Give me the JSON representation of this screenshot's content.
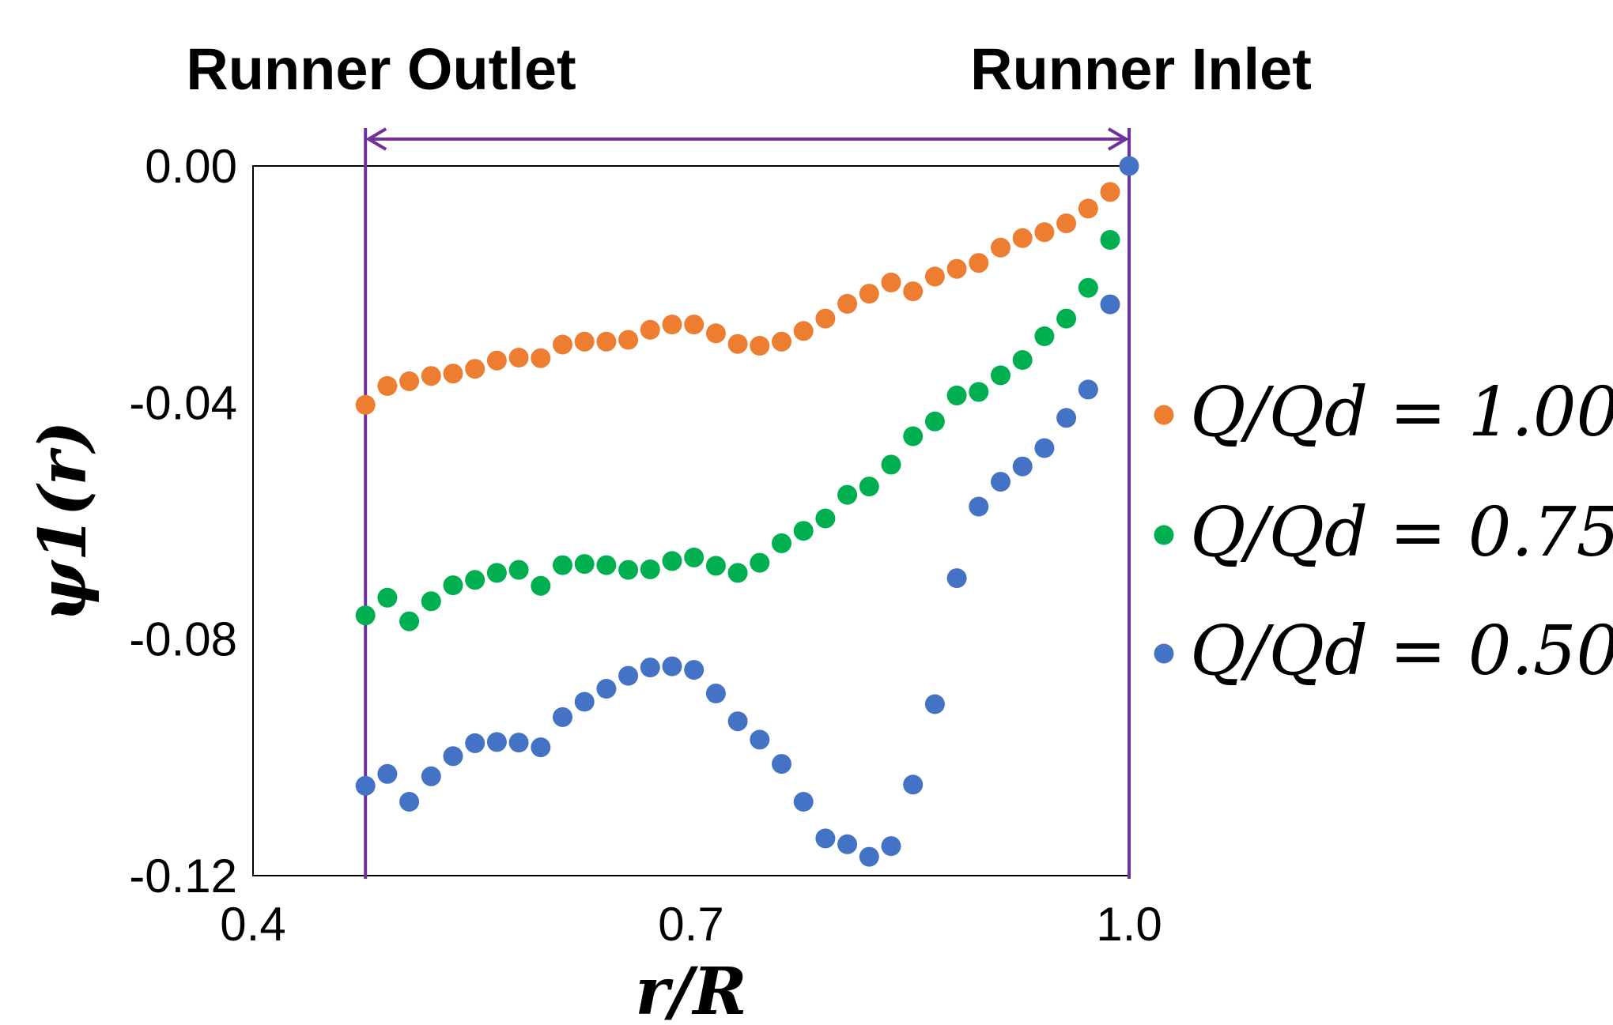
{
  "chart_data": {
    "type": "scatter",
    "xlabel": "r/R",
    "ylabel": "ψ1(r)",
    "xlim": [
      0.4,
      1.0
    ],
    "ylim": [
      -0.12,
      0.0
    ],
    "x_ticks": [
      "0.4",
      "0.7",
      "1.0"
    ],
    "y_ticks": [
      "0.00",
      "-0.04",
      "-0.08",
      "-0.12"
    ],
    "annotations": {
      "outlet_label": "Runner Outlet",
      "inlet_label": "Runner Inlet",
      "outlet_x": 0.477,
      "inlet_x": 1.0
    },
    "legend_position": "right",
    "series": [
      {
        "name": "Q/Qd = 1.00",
        "color": "#ed7d31",
        "x": [
          0.477,
          0.492,
          0.507,
          0.522,
          0.537,
          0.552,
          0.567,
          0.582,
          0.597,
          0.612,
          0.627,
          0.642,
          0.657,
          0.672,
          0.687,
          0.702,
          0.717,
          0.732,
          0.747,
          0.762,
          0.777,
          0.792,
          0.807,
          0.822,
          0.837,
          0.852,
          0.867,
          0.882,
          0.897,
          0.912,
          0.927,
          0.942,
          0.957,
          0.972,
          0.987
        ],
        "y": [
          -0.0404,
          -0.0372,
          -0.0364,
          -0.0355,
          -0.0351,
          -0.0343,
          -0.0329,
          -0.0324,
          -0.0325,
          -0.0302,
          -0.0297,
          -0.0297,
          -0.0294,
          -0.0277,
          -0.0268,
          -0.0268,
          -0.0283,
          -0.0301,
          -0.0304,
          -0.0297,
          -0.0279,
          -0.0258,
          -0.0233,
          -0.0216,
          -0.0197,
          -0.0212,
          -0.0187,
          -0.0174,
          -0.0164,
          -0.0138,
          -0.0122,
          -0.0112,
          -0.0097,
          -0.0072,
          -0.0044
        ]
      },
      {
        "name": "Q/Qd = 0.75",
        "color": "#00b050",
        "x": [
          0.477,
          0.492,
          0.507,
          0.522,
          0.537,
          0.552,
          0.567,
          0.582,
          0.597,
          0.612,
          0.627,
          0.642,
          0.657,
          0.672,
          0.687,
          0.702,
          0.717,
          0.732,
          0.747,
          0.762,
          0.777,
          0.792,
          0.807,
          0.822,
          0.837,
          0.852,
          0.867,
          0.882,
          0.897,
          0.912,
          0.927,
          0.942,
          0.957,
          0.972,
          0.987
        ],
        "y": [
          -0.076,
          -0.073,
          -0.077,
          -0.0736,
          -0.0709,
          -0.07,
          -0.0688,
          -0.0683,
          -0.071,
          -0.0675,
          -0.0673,
          -0.0675,
          -0.0683,
          -0.0682,
          -0.0668,
          -0.0662,
          -0.0676,
          -0.0688,
          -0.0671,
          -0.0638,
          -0.0617,
          -0.0596,
          -0.0556,
          -0.0542,
          -0.0505,
          -0.0457,
          -0.0432,
          -0.0388,
          -0.0382,
          -0.0354,
          -0.0328,
          -0.0288,
          -0.0258,
          -0.0206,
          -0.0125
        ]
      },
      {
        "name": "Q/Qd = 0.50",
        "color": "#4472c4",
        "x": [
          0.477,
          0.492,
          0.507,
          0.522,
          0.537,
          0.552,
          0.567,
          0.582,
          0.597,
          0.612,
          0.627,
          0.642,
          0.657,
          0.672,
          0.687,
          0.702,
          0.717,
          0.732,
          0.747,
          0.762,
          0.777,
          0.792,
          0.807,
          0.822,
          0.837,
          0.852,
          0.867,
          0.882,
          0.897,
          0.912,
          0.927,
          0.942,
          0.957,
          0.972,
          0.987,
          1.0
        ],
        "y": [
          -0.1048,
          -0.1028,
          -0.1075,
          -0.1032,
          -0.0998,
          -0.0976,
          -0.0974,
          -0.0975,
          -0.0983,
          -0.0932,
          -0.0906,
          -0.0884,
          -0.0862,
          -0.0848,
          -0.0846,
          -0.0852,
          -0.0892,
          -0.0939,
          -0.097,
          -0.1011,
          -0.1075,
          -0.1137,
          -0.1147,
          -0.1168,
          -0.115,
          -0.1046,
          -0.091,
          -0.0697,
          -0.0576,
          -0.0534,
          -0.0508,
          -0.0477,
          -0.0426,
          -0.0378,
          -0.0234,
          0.0
        ]
      }
    ]
  }
}
